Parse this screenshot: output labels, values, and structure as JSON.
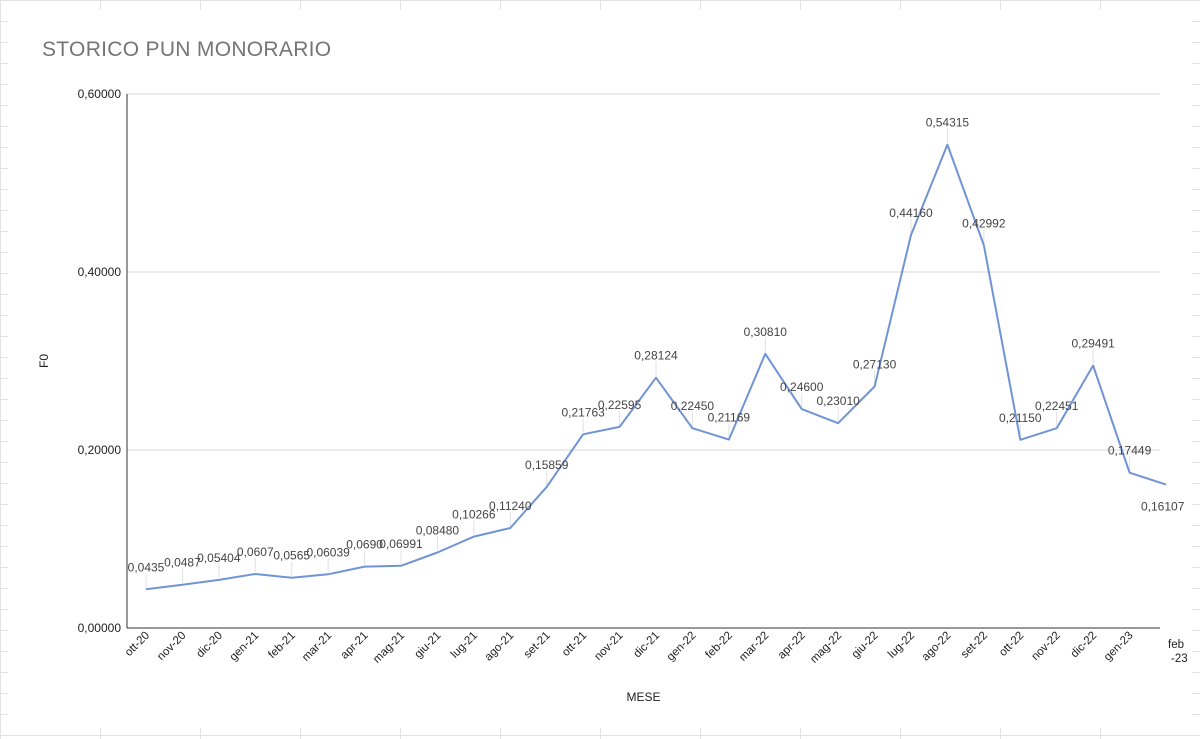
{
  "chart_data": {
    "type": "line",
    "title": "STORICO PUN MONORARIO",
    "xlabel": "MESE",
    "ylabel": "F0",
    "ylim": [
      0,
      0.6
    ],
    "yticks": [
      "0,00000",
      "0,20000",
      "0,40000",
      "0,60000"
    ],
    "ytick_values": [
      0,
      0.2,
      0.4,
      0.6
    ],
    "grid": true,
    "line_color": "#7094d6",
    "categories": [
      "ott-20",
      "nov-20",
      "dic-20",
      "gen-21",
      "feb-21",
      "mar-21",
      "apr-21",
      "mag-21",
      "giu-21",
      "lug-21",
      "ago-21",
      "set-21",
      "ott-21",
      "nov-21",
      "dic-21",
      "gen-22",
      "feb-22",
      "mar-22",
      "apr-22",
      "mag-22",
      "giu-22",
      "lug-22",
      "ago-22",
      "set-22",
      "ott-22",
      "nov-22",
      "dic-22",
      "gen-23",
      "feb-23"
    ],
    "category_labels": [
      "ott-20",
      "nov-20",
      "dic-20",
      "gen-21",
      "feb-21",
      "mar-21",
      "apr-21",
      "mag-21",
      "giu-21",
      "lug-21",
      "ago-21",
      "set-21",
      "ott-21",
      "nov-21",
      "dic-21",
      "gen-22",
      "feb-22",
      "mar-22",
      "apr-22",
      "mag-22",
      "giu-22",
      "lug-22",
      "ago-22",
      "set-22",
      "ott-22",
      "nov-22",
      "dic-22",
      "gen-23",
      "feb\n-23"
    ],
    "values": [
      0.0435,
      0.0487,
      0.05404,
      0.0607,
      0.0565,
      0.06039,
      0.069,
      0.06991,
      0.0848,
      0.10266,
      0.1124,
      0.15859,
      0.21763,
      0.22595,
      0.28124,
      0.2245,
      0.21169,
      0.3081,
      0.246,
      0.2301,
      0.2713,
      0.4416,
      0.54315,
      0.42992,
      0.2115,
      0.22451,
      0.29491,
      0.17449,
      0.16107
    ],
    "data_labels": [
      "0,0435",
      "0,0487",
      "0,05404",
      "0,0607",
      "0,0565",
      "0,06039",
      "0,0690",
      "0,06991",
      "0,08480",
      "0,10266",
      "0,11240",
      "0,15859",
      "0,21763",
      "0,22595",
      "0,28124",
      "0,22450",
      "0,21169",
      "0,30810",
      "0,24600",
      "0,23010",
      "0,27130",
      "0,44160",
      "0,54315",
      "0,42992",
      "0,21150",
      "0,22451",
      "0,29491",
      "0,17449",
      "0,16107"
    ]
  }
}
